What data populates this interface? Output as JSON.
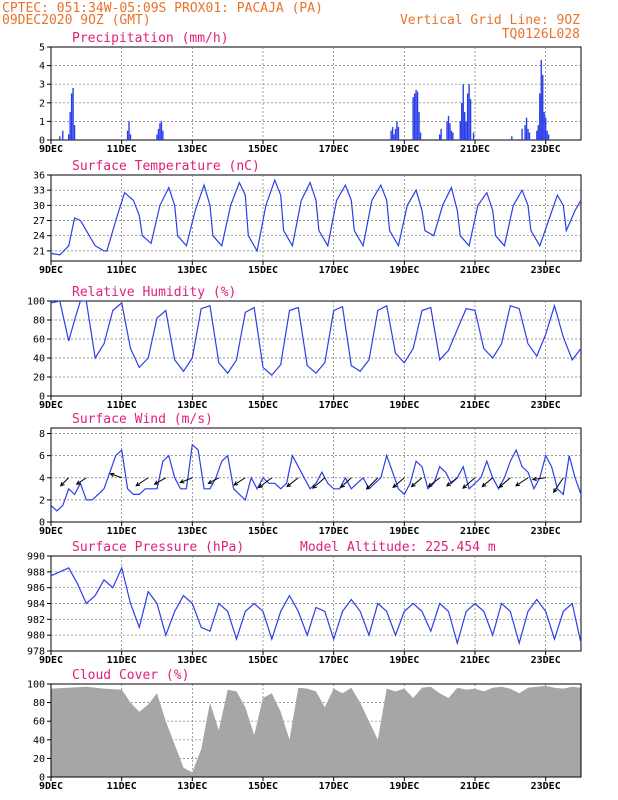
{
  "header": {
    "line1": "CPTEC:   051:34W-05:09S   PROX01: PACAJA (PA)",
    "line2_left": "09DEC2020 9OZ (GMT)",
    "line2_right": "Vertical Grid Line: 9OZ",
    "line3_right": "TQ0126L028"
  },
  "colors": {
    "series": "#2b3fe8",
    "header": "#e8742a",
    "title": "#e0207a",
    "cloud": "#a6a6a6"
  },
  "x_ticks": [
    "9DEC",
    "11DEC",
    "13DEC",
    "15DEC",
    "17DEC",
    "19DEC",
    "21DEC",
    "23DEC"
  ],
  "x_tick_hours": [
    0,
    48,
    96,
    144,
    192,
    240,
    288,
    336
  ],
  "x_range_hours": [
    0,
    360
  ],
  "chart_data": [
    {
      "type": "bar",
      "title": "Precipitation (mm/h)",
      "ylim": [
        0,
        5
      ],
      "yticks": [
        0,
        1,
        2,
        3,
        4,
        5
      ],
      "x_hours": [
        6,
        8,
        12,
        13,
        14,
        15,
        16,
        52,
        53,
        54,
        72,
        73,
        74,
        75,
        76,
        231,
        232,
        233,
        234,
        235,
        236,
        246,
        247,
        248,
        249,
        250,
        251,
        264,
        265,
        269,
        270,
        271,
        272,
        273,
        278,
        279,
        280,
        281,
        282,
        283,
        284,
        285,
        287,
        313,
        320,
        322,
        323,
        324,
        325,
        330,
        331,
        332,
        333,
        334,
        335,
        336,
        337,
        338
      ],
      "values": [
        0.2,
        0.5,
        0.3,
        1.5,
        2.5,
        2.8,
        0.8,
        0.5,
        1.0,
        0.3,
        0.3,
        0.6,
        0.9,
        1.0,
        0.5,
        0.5,
        0.7,
        0.3,
        0.6,
        1.0,
        0.7,
        2.3,
        2.5,
        2.7,
        2.6,
        1.5,
        0.4,
        0.3,
        0.6,
        1.0,
        1.3,
        0.9,
        0.5,
        0.4,
        1.0,
        2.0,
        3.0,
        1.5,
        1.0,
        2.5,
        3.0,
        2.2,
        0.4,
        0.2,
        0.6,
        0.8,
        1.2,
        0.6,
        0.4,
        0.5,
        0.8,
        2.5,
        4.3,
        3.5,
        1.5,
        1.2,
        0.5,
        0.3
      ]
    },
    {
      "type": "line",
      "title": "Surface Temperature (nC)",
      "ylim": [
        19,
        36
      ],
      "yticks": [
        21,
        24,
        27,
        30,
        33,
        36
      ],
      "x_hours": [
        0,
        6,
        12,
        16,
        20,
        24,
        30,
        36,
        38,
        44,
        50,
        56,
        60,
        62,
        68,
        74,
        80,
        84,
        86,
        92,
        98,
        104,
        108,
        110,
        116,
        122,
        128,
        132,
        134,
        140,
        146,
        152,
        156,
        158,
        164,
        170,
        176,
        180,
        182,
        188,
        194,
        200,
        204,
        206,
        212,
        218,
        224,
        228,
        230,
        236,
        242,
        248,
        252,
        254,
        260,
        266,
        272,
        276,
        278,
        284,
        290,
        296,
        300,
        302,
        308,
        314,
        320,
        324,
        326,
        332,
        338,
        344,
        348,
        350,
        356,
        360
      ],
      "values": [
        20.5,
        20.2,
        22,
        27.5,
        27,
        25,
        22,
        21,
        21,
        27,
        32.5,
        31,
        28,
        24,
        22.5,
        30,
        33.5,
        30,
        24,
        22,
        29,
        34,
        30,
        24,
        22,
        30,
        34.5,
        32,
        24,
        21,
        30,
        35,
        32,
        25,
        22,
        31,
        34.5,
        31,
        25,
        22,
        31,
        34,
        31,
        25,
        22,
        31,
        34,
        31,
        25,
        22,
        30,
        33,
        29,
        25,
        24,
        30,
        33.5,
        29,
        24,
        22,
        30,
        32.5,
        29,
        24,
        22,
        30,
        33,
        30,
        25,
        22,
        27,
        32,
        30,
        25,
        29,
        31
      ]
    },
    {
      "type": "line",
      "title": "Relative Humidity (%)",
      "ylim": [
        0,
        100
      ],
      "yticks": [
        0,
        20,
        40,
        60,
        80,
        100
      ],
      "x_hours": [
        0,
        6,
        12,
        16,
        20,
        24,
        30,
        36,
        42,
        48,
        54,
        60,
        66,
        72,
        78,
        84,
        90,
        96,
        102,
        108,
        114,
        120,
        126,
        132,
        138,
        144,
        150,
        156,
        162,
        168,
        174,
        180,
        186,
        192,
        198,
        204,
        210,
        216,
        222,
        228,
        234,
        240,
        246,
        252,
        258,
        264,
        270,
        276,
        282,
        288,
        294,
        300,
        306,
        312,
        318,
        324,
        330,
        336,
        342,
        348,
        354,
        360
      ],
      "values": [
        98,
        100,
        58,
        80,
        100,
        100,
        40,
        55,
        90,
        98,
        50,
        30,
        40,
        82,
        90,
        38,
        26,
        40,
        92,
        95,
        35,
        24,
        38,
        88,
        93,
        30,
        22,
        33,
        90,
        93,
        32,
        24,
        35,
        90,
        94,
        32,
        26,
        38,
        90,
        95,
        45,
        35,
        50,
        90,
        93,
        38,
        48,
        70,
        92,
        90,
        50,
        40,
        55,
        95,
        92,
        55,
        42,
        65,
        95,
        62,
        38,
        50
      ]
    },
    {
      "type": "line",
      "title": "Surface Wind (m/s)",
      "ylim": [
        0,
        8.5
      ],
      "yticks": [
        0,
        2,
        4,
        6,
        8
      ],
      "x_hours": [
        0,
        4,
        8,
        12,
        16,
        20,
        24,
        28,
        32,
        36,
        40,
        44,
        48,
        52,
        56,
        60,
        64,
        68,
        72,
        76,
        80,
        84,
        88,
        92,
        96,
        100,
        104,
        108,
        112,
        116,
        120,
        124,
        128,
        132,
        136,
        140,
        144,
        148,
        152,
        156,
        160,
        164,
        168,
        172,
        176,
        180,
        184,
        188,
        192,
        196,
        200,
        204,
        208,
        212,
        216,
        220,
        224,
        228,
        232,
        236,
        240,
        244,
        248,
        252,
        256,
        260,
        264,
        268,
        272,
        276,
        280,
        284,
        288,
        292,
        296,
        300,
        304,
        308,
        312,
        316,
        320,
        324,
        328,
        332,
        336,
        340,
        344,
        348,
        352,
        356,
        360
      ],
      "values": [
        1.5,
        1,
        1.5,
        3,
        2.5,
        3.5,
        2,
        2,
        2.5,
        3,
        4.5,
        6,
        6.5,
        3,
        2.5,
        2.5,
        3,
        3,
        3,
        5.5,
        6,
        4,
        3,
        3,
        7,
        6.5,
        3,
        3,
        4,
        5.5,
        6,
        3,
        2.5,
        2,
        4,
        3,
        4,
        3.5,
        3.5,
        3,
        3.5,
        6,
        5,
        4,
        3,
        3.5,
        4.5,
        3.5,
        3,
        3,
        4,
        3,
        3.5,
        4,
        3,
        3.5,
        4,
        6,
        4.5,
        3,
        2.5,
        3.5,
        5.5,
        5,
        3,
        3.5,
        5,
        4.5,
        3.5,
        4,
        5,
        3,
        3.5,
        4,
        5.5,
        4,
        3,
        4,
        5.5,
        6.5,
        5,
        4.5,
        3,
        4,
        6,
        5,
        3,
        2.5,
        6,
        4,
        2.5
      ],
      "vectors": {
        "x_hours": [
          12,
          24,
          48,
          66,
          78,
          96,
          114,
          132,
          150,
          168,
          186,
          204,
          222,
          240,
          252,
          264,
          276,
          288,
          300,
          312,
          324,
          336,
          348
        ],
        "u": [
          -1,
          -1.2,
          -1.4,
          -1.5,
          -1.4,
          -1.5,
          -1.3,
          -1.4,
          -1.6,
          -1.4,
          -1.5,
          -1.3,
          -1.4,
          -1.4,
          -1.3,
          -1.4,
          -1.3,
          -1.5,
          -1.3,
          -1.4,
          -1.5,
          -1.6,
          -1.2
        ],
        "v": [
          -1,
          -0.8,
          0.5,
          -1,
          -0.8,
          -0.6,
          -0.7,
          -0.9,
          -1.2,
          -1.1,
          -1.3,
          -1.2,
          -1.4,
          -1.2,
          -1.1,
          -1.1,
          -1,
          -1.3,
          -1.1,
          -1.2,
          -1,
          -0.2,
          -1.8
        ]
      }
    },
    {
      "type": "line",
      "title": "Surface Pressure (hPa)",
      "annotation": "Model Altitude: 225.454  m",
      "ylim": [
        978,
        990
      ],
      "yticks": [
        978,
        980,
        982,
        984,
        986,
        988,
        990
      ],
      "x_hours": [
        0,
        6,
        12,
        18,
        24,
        30,
        36,
        42,
        48,
        54,
        60,
        66,
        72,
        78,
        84,
        90,
        96,
        102,
        108,
        114,
        120,
        126,
        132,
        138,
        144,
        150,
        156,
        162,
        168,
        174,
        180,
        186,
        192,
        198,
        204,
        210,
        216,
        222,
        228,
        234,
        240,
        246,
        252,
        258,
        264,
        270,
        276,
        282,
        288,
        294,
        300,
        306,
        312,
        318,
        324,
        330,
        336,
        342,
        348,
        354,
        360
      ],
      "values": [
        987.5,
        988,
        988.5,
        986.5,
        984,
        985,
        987,
        986,
        988.5,
        984,
        981,
        985.5,
        984,
        980,
        983,
        985,
        984,
        981,
        980.5,
        984,
        983,
        979.5,
        983,
        984,
        983,
        979.5,
        983,
        985,
        983,
        980,
        983.5,
        983,
        979.5,
        983,
        984.5,
        983,
        980,
        984,
        983,
        980,
        983,
        984,
        983,
        980.5,
        984,
        983,
        979,
        983,
        984,
        983,
        980,
        984,
        983,
        979,
        983,
        984.5,
        983,
        979.5,
        983,
        984,
        979
      ]
    },
    {
      "type": "area",
      "title": "Cloud Cover (%)",
      "ylim": [
        0,
        100
      ],
      "yticks": [
        0,
        20,
        40,
        60,
        80,
        100
      ],
      "x_hours": [
        0,
        12,
        24,
        36,
        48,
        54,
        60,
        66,
        72,
        78,
        84,
        90,
        96,
        102,
        108,
        114,
        120,
        126,
        132,
        138,
        144,
        150,
        156,
        162,
        168,
        174,
        180,
        186,
        192,
        198,
        204,
        210,
        216,
        222,
        228,
        234,
        240,
        246,
        252,
        258,
        264,
        270,
        276,
        282,
        288,
        294,
        300,
        306,
        312,
        318,
        324,
        330,
        336,
        342,
        348,
        354,
        360
      ],
      "values": [
        95,
        96,
        97,
        95,
        94,
        80,
        70,
        78,
        90,
        60,
        35,
        10,
        5,
        30,
        80,
        50,
        94,
        92,
        75,
        45,
        85,
        90,
        70,
        40,
        96,
        95,
        92,
        75,
        95,
        90,
        96,
        80,
        60,
        40,
        95,
        92,
        95,
        85,
        96,
        97,
        90,
        85,
        96,
        94,
        95,
        92,
        96,
        97,
        95,
        90,
        96,
        97,
        98,
        96,
        95,
        97,
        96
      ]
    }
  ]
}
